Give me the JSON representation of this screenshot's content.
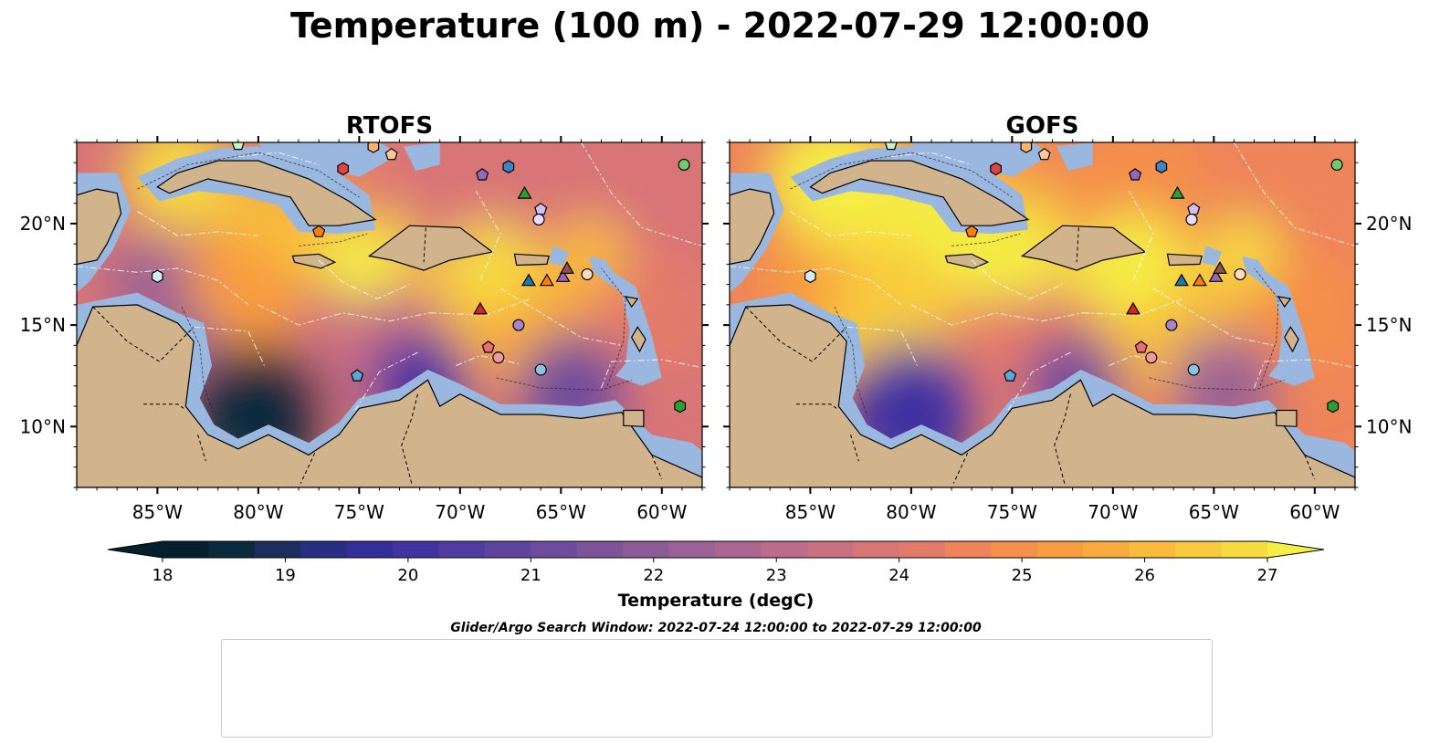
{
  "title": "Temperature (100 m) - 2022-07-29 12:00:00",
  "panels": [
    {
      "title": "RTOFS",
      "variant": "rtofs"
    },
    {
      "title": "GOFS",
      "variant": "gofs"
    }
  ],
  "search_window": "Glider/Argo Search Window: 2022-07-24 12:00:00 to 2022-07-29 12:00:00",
  "colors": {
    "land": "#d2b48c",
    "shelf": "#9ab7df",
    "cold": "#04202f",
    "warm": "#f5ee45"
  },
  "chart_data": {
    "type": "heatmap",
    "lon_range": [
      -89,
      -58
    ],
    "lat_range": [
      7,
      24
    ],
    "x_ticks": [
      {
        "lon": -85,
        "label": "85°W"
      },
      {
        "lon": -80,
        "label": "80°W"
      },
      {
        "lon": -75,
        "label": "75°W"
      },
      {
        "lon": -70,
        "label": "70°W"
      },
      {
        "lon": -65,
        "label": "65°W"
      },
      {
        "lon": -60,
        "label": "60°W"
      }
    ],
    "y_ticks": [
      {
        "lat": 20,
        "label": "20°N"
      },
      {
        "lat": 15,
        "label": "15°N"
      },
      {
        "lat": 10,
        "label": "10°N"
      }
    ],
    "colorbar": {
      "label": "Temperature (degC)",
      "vmin": 18,
      "vmax": 27,
      "ticks": [
        "18",
        "19",
        "20",
        "21",
        "22",
        "23",
        "24",
        "25",
        "26",
        "27"
      ],
      "colors": [
        "#04202f",
        "#0b2a3d",
        "#1c2e5e",
        "#272f82",
        "#332f9a",
        "#4133a2",
        "#503ba2",
        "#5f449f",
        "#6e4c9c",
        "#7d5499",
        "#8d5b97",
        "#9c6295",
        "#ac6791",
        "#bb6c8b",
        "#ca7083",
        "#d87577",
        "#e47b6a",
        "#ee845a",
        "#f48f4c",
        "#f79c41",
        "#f8ab3c",
        "#f8bb3c",
        "#f8cb3e",
        "#f6dc41",
        "#f5ee45"
      ]
    },
    "markers": [
      {
        "id": "1902308",
        "type": "argo",
        "shape": "circle",
        "color": "#1f77b4",
        "lon": null,
        "lat": null
      },
      {
        "id": "1902314",
        "type": "argo",
        "shape": "hexagon",
        "color": "#3a87c8",
        "lon": -67.6,
        "lat": 22.8
      },
      {
        "id": "3901859",
        "type": "argo",
        "shape": "pentagon",
        "color": "#5ea6d8",
        "lon": -75.1,
        "lat": 12.5
      },
      {
        "id": "3901860",
        "type": "argo",
        "shape": "circle",
        "color": "#8cc3e8",
        "lon": -66.0,
        "lat": 12.8
      },
      {
        "id": "4901716",
        "type": "argo",
        "shape": "hexagon",
        "color": "#d4ebf8",
        "lon": -85.0,
        "lat": 17.4
      },
      {
        "id": "4901719",
        "type": "argo",
        "shape": "pentagon",
        "color": "#ff7f0e",
        "lon": -77.0,
        "lat": 19.6
      },
      {
        "id": "4902113",
        "type": "argo",
        "shape": "circle",
        "color": "#ff9a44",
        "lon": null,
        "lat": null
      },
      {
        "id": "4902339",
        "type": "argo",
        "shape": "hexagon",
        "color": "#ffb26e",
        "lon": -74.3,
        "lat": 23.8
      },
      {
        "id": "4902476",
        "type": "argo",
        "shape": "pentagon",
        "color": "#ffc793",
        "lon": -73.4,
        "lat": 23.4
      },
      {
        "id": "4902534",
        "type": "argo",
        "shape": "circle",
        "color": "#ffdcc0",
        "lon": -63.7,
        "lat": 17.5
      },
      {
        "id": "4903227",
        "type": "argo",
        "shape": "hexagon",
        "color": "#2ca02c",
        "lon": -59.1,
        "lat": 11.0
      },
      {
        "id": "4903238",
        "type": "argo",
        "shape": "pentagon",
        "color": "#4cb84c",
        "lon": null,
        "lat": null
      },
      {
        "id": "4903244",
        "type": "argo",
        "shape": "circle",
        "color": "#6dcd6d",
        "lon": -58.9,
        "lat": 22.9
      },
      {
        "id": "4903255",
        "type": "argo",
        "shape": "hexagon",
        "color": "#98df98",
        "lon": null,
        "lat": null
      },
      {
        "id": "4903277",
        "type": "argo",
        "shape": "pentagon",
        "color": "#c8f2c8",
        "lon": -81.0,
        "lat": 23.9
      },
      {
        "id": "4903279",
        "type": "argo",
        "shape": "circle",
        "color": "#d62728",
        "lon": null,
        "lat": null
      },
      {
        "id": "4903333",
        "type": "argo",
        "shape": "hexagon",
        "color": "#e04444",
        "lon": -75.8,
        "lat": 22.7
      },
      {
        "id": "4903344",
        "type": "argo",
        "shape": "pentagon",
        "color": "#ea6e6e",
        "lon": -68.6,
        "lat": 13.9
      },
      {
        "id": "4903349",
        "type": "argo",
        "shape": "circle",
        "color": "#f29a9a",
        "lon": -68.1,
        "lat": 13.4
      },
      {
        "id": "4903353",
        "type": "argo",
        "shape": "hexagon",
        "color": "#f9c6c6",
        "lon": null,
        "lat": null
      },
      {
        "id": "4903354",
        "type": "argo",
        "shape": "pentagon",
        "color": "#9467bd",
        "lon": -68.9,
        "lat": 22.4
      },
      {
        "id": "5906437",
        "type": "argo",
        "shape": "circle",
        "color": "#a983d0",
        "lon": -67.1,
        "lat": 15.0
      },
      {
        "id": "6901182",
        "type": "argo",
        "shape": "hexagon",
        "color": "#bea0e0",
        "lon": null,
        "lat": null
      },
      {
        "id": "6902771",
        "type": "argo",
        "shape": "pentagon",
        "color": "#d3bef0",
        "lon": -66.0,
        "lat": 20.7
      },
      {
        "id": "6902916",
        "type": "argo",
        "shape": "circle",
        "color": "#e8dcff",
        "lon": -66.1,
        "lat": 20.2
      },
      {
        "id": "6902958",
        "type": "argo",
        "shape": "hexagon",
        "color": "#8c564b",
        "lon": null,
        "lat": null
      },
      {
        "id": "SG610-20220621T1130",
        "type": "glider",
        "shape": "triangle",
        "color": "#1f77b4",
        "lon": -66.6,
        "lat": 17.2
      },
      {
        "id": "SG635-20220622T1250",
        "type": "glider",
        "shape": "triangle",
        "color": "#ff7f0e",
        "lon": -65.7,
        "lat": 17.2
      },
      {
        "id": "SG665-20220623T1144",
        "type": "glider",
        "shape": "triangle",
        "color": "#2ca02c",
        "lon": -66.8,
        "lat": 21.5
      },
      {
        "id": "SG667-20220629T1254",
        "type": "glider",
        "shape": "triangle",
        "color": "#d62728",
        "lon": -69.0,
        "lat": 15.8
      },
      {
        "id": "SG678-20220622T1240",
        "type": "glider",
        "shape": "triangle",
        "color": "#9467bd",
        "lon": -64.9,
        "lat": 17.4
      },
      {
        "id": "ng347-20220727T0000",
        "type": "glider",
        "shape": "triangle",
        "color": "#8c564b",
        "lon": -64.7,
        "lat": 17.8
      }
    ]
  }
}
